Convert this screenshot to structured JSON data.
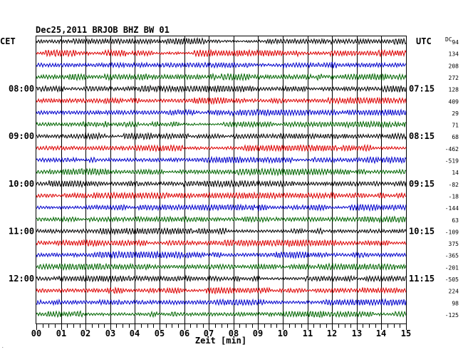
{
  "chart_data": {
    "type": "line",
    "title": "Dec25,2011   BRJOB BHZ BW 01",
    "xlabel": "Zeit [min]",
    "x_ticks": [
      "00",
      "01",
      "02",
      "03",
      "04",
      "05",
      "06",
      "07",
      "08",
      "09",
      "10",
      "11",
      "12",
      "13",
      "14",
      "15"
    ],
    "xlim": [
      0,
      15
    ],
    "left_axis_title": "CET",
    "right_axis_title": "UTC",
    "offset_header": "DC",
    "left_time_labels": [
      {
        "row": 4,
        "label": "08:00"
      },
      {
        "row": 8,
        "label": "09:00"
      },
      {
        "row": 12,
        "label": "10:00"
      },
      {
        "row": 16,
        "label": "11:00"
      },
      {
        "row": 20,
        "label": "12:00"
      }
    ],
    "right_time_labels": [
      {
        "row": 4,
        "label": "07:15"
      },
      {
        "row": 8,
        "label": "08:15"
      },
      {
        "row": 12,
        "label": "09:15"
      },
      {
        "row": 16,
        "label": "10:15"
      },
      {
        "row": 20,
        "label": "11:15"
      }
    ],
    "dc_offsets": [
      "94",
      "134",
      "208",
      "272",
      "128",
      "409",
      "29",
      "71",
      "68",
      "-462",
      "-519",
      "14",
      "-82",
      "-18",
      "-144",
      "63",
      "-109",
      "375",
      "-365",
      "-201",
      "-505",
      "224",
      "98",
      "-125"
    ],
    "trace_colors": [
      "#000000",
      "#dd0000",
      "#0000cc",
      "#006600"
    ],
    "grid": true,
    "rows": 24,
    "minutes_per_row": 15
  }
}
